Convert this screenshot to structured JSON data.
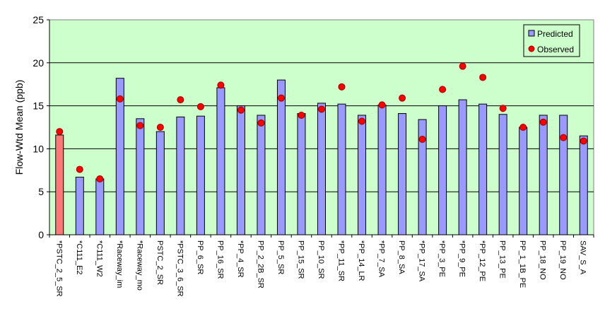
{
  "chart_data": {
    "type": "bar",
    "ylabel": "Flow-Wtd Mean (ppb)",
    "xlabel": "",
    "ylim": [
      0,
      25
    ],
    "yticks": [
      "0",
      "5",
      "10",
      "15",
      "20",
      "25"
    ],
    "grid": true,
    "legend_position": "top-right",
    "categories": [
      "*PSTC_2_5_SR",
      "*C111_E2",
      "*C111_W2",
      "*Raceway_im",
      "*Raceway_mo",
      "PSTC_2_SR",
      "*PSTC_3_6_SR",
      "PP_6_SR",
      "PP_16_SR",
      "*PP_4_SR",
      "PP_2_2B_SR",
      "PP_5_SR",
      "PP_15_SR",
      "PP_10_SR",
      "*PP_11_SR",
      "*PP_14_LR",
      "*PP_7_SA",
      "PP_8_SA",
      "*PP_17_SA",
      "*PP_3_PE",
      "*PP_9_PE",
      "*PP_12_PE",
      "PP_13_PE",
      "PP_1_1B_PE",
      "PP_18_NO",
      "PP_19_NO",
      "SAV_S_A"
    ],
    "series": [
      {
        "name": "Predicted",
        "type": "bar",
        "values": [
          11.6,
          6.7,
          6.5,
          18.2,
          13.5,
          12.0,
          13.7,
          13.8,
          17.1,
          15.0,
          13.9,
          18.0,
          14.1,
          15.3,
          15.2,
          13.9,
          15.1,
          14.1,
          13.4,
          15.0,
          15.7,
          15.2,
          14.0,
          12.5,
          13.9,
          13.9,
          11.5
        ]
      },
      {
        "name": "Observed",
        "type": "scatter",
        "values": [
          12.0,
          7.6,
          6.5,
          15.8,
          12.7,
          12.5,
          15.7,
          14.9,
          17.4,
          14.5,
          13.0,
          15.9,
          13.9,
          14.6,
          17.2,
          13.2,
          15.1,
          15.9,
          11.1,
          16.9,
          19.6,
          18.3,
          14.7,
          12.5,
          13.1,
          11.3,
          10.9
        ]
      }
    ],
    "colors": {
      "plot_background": "#ccffcc",
      "bar_fill": "#9999ff",
      "highlight_bar_fill": "#ff7777",
      "marker_fill": "#ff0000",
      "marker_stroke": "#990000",
      "axis": "#000000"
    }
  }
}
